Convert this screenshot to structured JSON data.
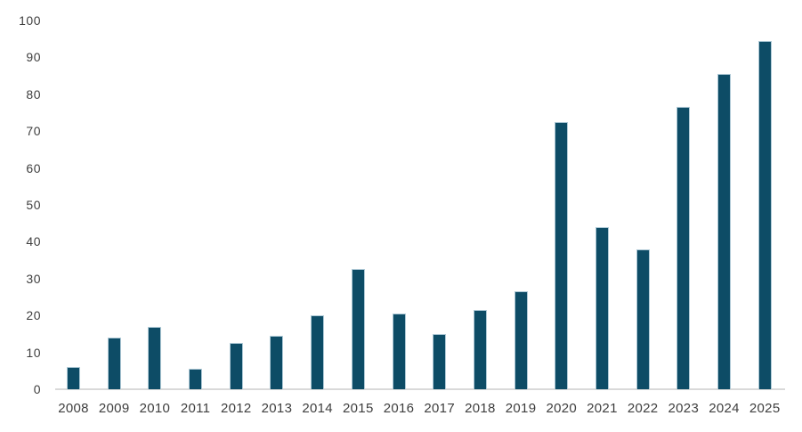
{
  "chart_data": {
    "type": "bar",
    "title": "",
    "xlabel": "",
    "ylabel": "",
    "categories": [
      "2008",
      "2009",
      "2010",
      "2011",
      "2012",
      "2013",
      "2014",
      "2015",
      "2016",
      "2017",
      "2018",
      "2019",
      "2020",
      "2021",
      "2022",
      "2023",
      "2024",
      "2025"
    ],
    "values": [
      6,
      14,
      17,
      5.5,
      12.5,
      14.5,
      20,
      32.5,
      20.5,
      15,
      21.5,
      26.5,
      72.5,
      44,
      38,
      76.5,
      85.5,
      94.5
    ],
    "ylim": [
      0,
      100
    ],
    "y_ticks": [
      0,
      10,
      20,
      30,
      40,
      50,
      60,
      70,
      80,
      90,
      100
    ],
    "grid": false,
    "legend": false,
    "colors": {
      "bar_fill": "#0d4c66",
      "bar_edge": "#aec9d6",
      "axis_line": "#d9d9d9",
      "tick_text": "#3e3e3e",
      "background": "#ffffff"
    }
  }
}
